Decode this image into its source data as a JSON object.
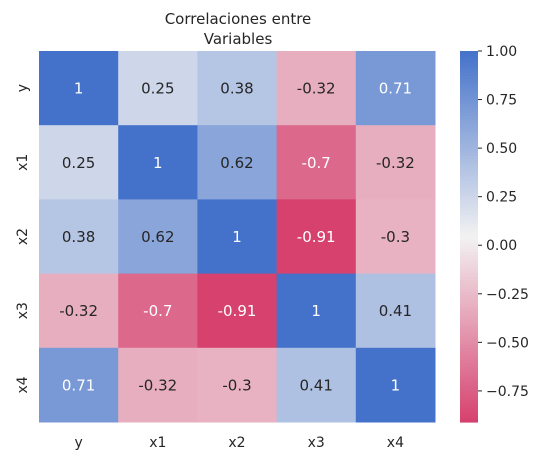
{
  "chart_data": {
    "type": "heatmap",
    "title_lines": [
      "Correlaciones entre",
      "Variables"
    ],
    "x_labels": [
      "y",
      "x1",
      "x2",
      "x3",
      "x4"
    ],
    "y_labels": [
      "y",
      "x1",
      "x2",
      "x3",
      "x4"
    ],
    "values": [
      [
        1,
        0.25,
        0.38,
        -0.32,
        0.71
      ],
      [
        0.25,
        1,
        0.62,
        -0.7,
        -0.32
      ],
      [
        0.38,
        0.62,
        1,
        -0.91,
        -0.3
      ],
      [
        -0.32,
        -0.7,
        -0.91,
        1,
        0.41
      ],
      [
        0.71,
        -0.32,
        -0.3,
        0.41,
        1
      ]
    ],
    "annotations": [
      [
        "1",
        "0.25",
        "0.38",
        "-0.32",
        "0.71"
      ],
      [
        "0.25",
        "1",
        "0.62",
        "-0.7",
        "-0.32"
      ],
      [
        "0.38",
        "0.62",
        "1",
        "-0.91",
        "-0.3"
      ],
      [
        "-0.32",
        "-0.7",
        "-0.91",
        "1",
        "0.41"
      ],
      [
        "0.71",
        "-0.32",
        "-0.3",
        "0.41",
        "1"
      ]
    ],
    "colorbar": {
      "min": -0.91,
      "max": 1.0,
      "ticks": [
        1.0,
        0.75,
        0.5,
        0.25,
        0.0,
        -0.25,
        -0.5,
        -0.75
      ],
      "tick_labels": [
        "1.00",
        "0.75",
        "0.50",
        "0.25",
        "0.00",
        "−0.25",
        "−0.50",
        "−0.75"
      ]
    },
    "colors": {
      "low": "#d6416e",
      "mid": "#f2f2f2",
      "high": "#4472ca",
      "text_dark": "#262626",
      "text_light": "#ffffff"
    }
  }
}
